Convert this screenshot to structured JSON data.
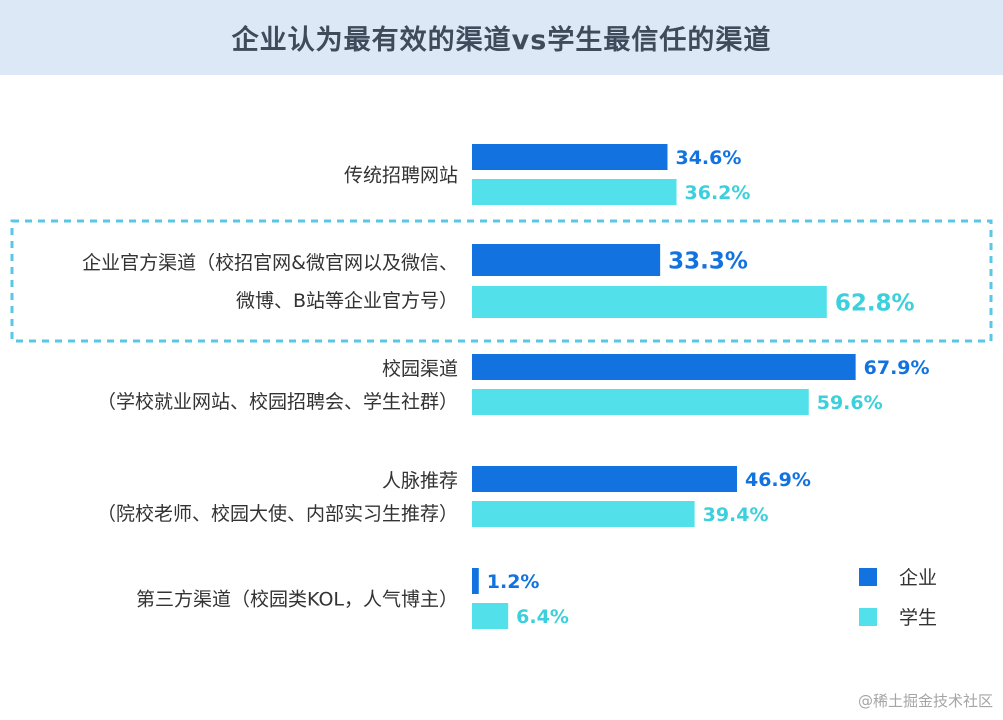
{
  "title": "企业认为最有效的渠道vs学生最信任的渠道",
  "watermark": "@稀土掘金技术社区",
  "colors": {
    "enterprise": "#1273e0",
    "student": "#52e0ea",
    "title_bg": "#dde8f7",
    "highlight_border": "#5ac7e6"
  },
  "chart_data": {
    "type": "bar",
    "orientation": "horizontal",
    "title": "企业认为最有效的渠道vs学生最信任的渠道",
    "categories": [
      [
        "传统招聘网站"
      ],
      [
        "企业官方渠道（校招官网&微官网以及微信、",
        "微博、B站等企业官方号）"
      ],
      [
        "校园渠道",
        "（学校就业网站、校园招聘会、学生社群）"
      ],
      [
        "人脉推荐",
        "（院校老师、校园大使、内部实习生推荐）"
      ],
      [
        "第三方渠道（校园类KOL，人气博主）"
      ]
    ],
    "series": [
      {
        "name": "企业",
        "values": [
          34.6,
          33.3,
          67.9,
          46.9,
          1.2
        ],
        "labels": [
          "34.6%",
          "33.3%",
          "67.9%",
          "46.9%",
          "1.2%"
        ]
      },
      {
        "name": "学生",
        "values": [
          36.2,
          62.8,
          59.6,
          39.4,
          6.4
        ],
        "labels": [
          "36.2%",
          "62.8%",
          "59.6%",
          "39.4%",
          "6.4%"
        ]
      }
    ],
    "highlighted_category_index": 1,
    "xlim": [
      0,
      100
    ],
    "grid": false,
    "legend_position": "bottom-right"
  }
}
